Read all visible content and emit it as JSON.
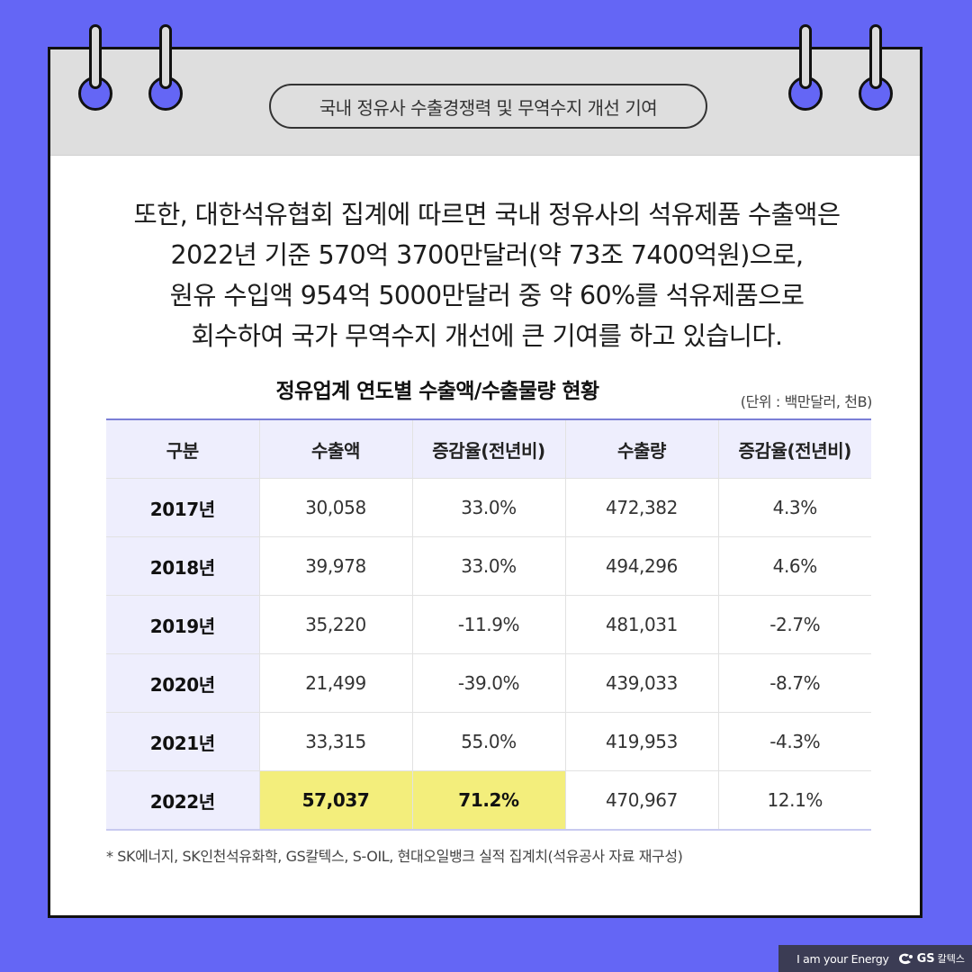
{
  "header": {
    "title": "국내 정유사 수출경쟁력 및 무역수지 개선 기여"
  },
  "intro": {
    "lines": [
      "또한, 대한석유협회 집계에 따르면 국내 정유사의 석유제품 수출액은",
      "2022년 기준 570억 3700만달러(약 73조 7400억원)으로,",
      "원유 수입액 954억 5000만달러 중 약 60%를 석유제품으로",
      "회수하여 국가 무역수지 개선에 큰 기여를 하고 있습니다."
    ]
  },
  "table": {
    "title": "정유업계 연도별 수출액/수출물량 현황",
    "unit": "(단위 : 백만달러, 천B)",
    "columns": [
      "구분",
      "수출액",
      "증감율(전년비)",
      "수출량",
      "증감율(전년비)"
    ],
    "rows": [
      {
        "year": "2017년",
        "export_value": "30,058",
        "value_change": "33.0%",
        "export_volume": "472,382",
        "volume_change": "4.3%"
      },
      {
        "year": "2018년",
        "export_value": "39,978",
        "value_change": "33.0%",
        "export_volume": "494,296",
        "volume_change": "4.6%"
      },
      {
        "year": "2019년",
        "export_value": "35,220",
        "value_change": "-11.9%",
        "export_volume": "481,031",
        "volume_change": "-2.7%"
      },
      {
        "year": "2020년",
        "export_value": "21,499",
        "value_change": "-39.0%",
        "export_volume": "439,033",
        "volume_change": "-8.7%"
      },
      {
        "year": "2021년",
        "export_value": "33,315",
        "value_change": "55.0%",
        "export_volume": "419,953",
        "volume_change": "-4.3%"
      },
      {
        "year": "2022년",
        "export_value": "57,037",
        "value_change": "71.2%",
        "export_volume": "470,967",
        "volume_change": "12.1%"
      }
    ],
    "highlight_color": "#f3ee7c"
  },
  "footnote": "* SK에너지, SK인천석유화학, GS칼텍스, S-OIL, 현대오일뱅크 실적 집계치(석유공사 자료 재구성)",
  "brand": {
    "tagline": "I am your Energy",
    "logo_icon": "gs-logo-icon",
    "logo_text": "GS",
    "logo_suffix": "칼텍스"
  },
  "colors": {
    "background": "#6466f5",
    "header_band": "#dedede",
    "table_header": "#eeeefd"
  }
}
